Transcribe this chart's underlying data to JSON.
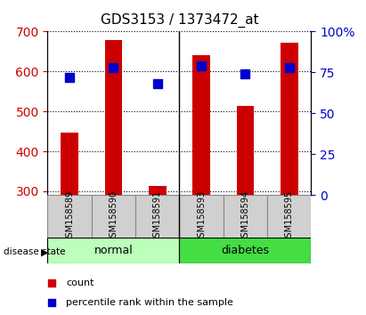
{
  "title": "GDS3153 / 1373472_at",
  "samples": [
    "GSM158589",
    "GSM158590",
    "GSM158591",
    "GSM158593",
    "GSM158594",
    "GSM158595"
  ],
  "counts": [
    447,
    678,
    313,
    641,
    514,
    672
  ],
  "percentile_ranks": [
    72,
    78,
    68,
    79,
    74,
    78
  ],
  "group_labels": [
    "normal",
    "diabetes"
  ],
  "bar_color": "#cc0000",
  "dot_color": "#0000cc",
  "ylim_left": [
    290,
    700
  ],
  "ylim_right": [
    0,
    100
  ],
  "yticks_left": [
    300,
    400,
    500,
    600,
    700
  ],
  "yticks_right": [
    0,
    25,
    50,
    75,
    100
  ],
  "normal_color": "#bbffbb",
  "diabetes_color": "#44dd44",
  "tick_label_color_left": "#cc0000",
  "tick_label_color_right": "#0000cc",
  "bar_width": 0.4,
  "dot_size": 60,
  "count_base": 290
}
